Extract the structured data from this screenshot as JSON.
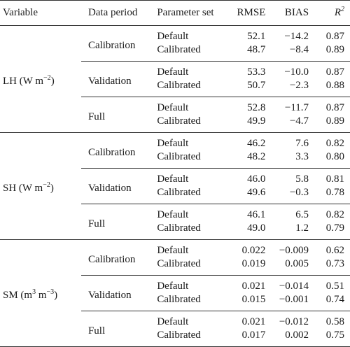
{
  "header": {
    "variable": "Variable",
    "data_period": "Data period",
    "parameter_set": "Parameter set",
    "rmse": "RMSE",
    "bias": "BIAS",
    "r2_base": "R",
    "r2_sup": "2"
  },
  "groups": [
    {
      "var_pre": "LH (W m",
      "var_sup": "−2",
      "var_post": ")",
      "periods": [
        {
          "name": "Calibration",
          "rows": [
            {
              "set": "Default",
              "rmse": "52.1",
              "bias": "−14.2",
              "r2": "0.87"
            },
            {
              "set": "Calibrated",
              "rmse": "48.7",
              "bias": "−8.4",
              "r2": "0.89"
            }
          ]
        },
        {
          "name": "Validation",
          "rows": [
            {
              "set": "Default",
              "rmse": "53.3",
              "bias": "−10.0",
              "r2": "0.87"
            },
            {
              "set": "Calibrated",
              "rmse": "50.7",
              "bias": "−2.3",
              "r2": "0.88"
            }
          ]
        },
        {
          "name": "Full",
          "rows": [
            {
              "set": "Default",
              "rmse": "52.8",
              "bias": "−11.7",
              "r2": "0.87"
            },
            {
              "set": "Calibrated",
              "rmse": "49.9",
              "bias": "−4.7",
              "r2": "0.89"
            }
          ]
        }
      ]
    },
    {
      "var_pre": "SH (W m",
      "var_sup": "−2",
      "var_post": ")",
      "periods": [
        {
          "name": "Calibration",
          "rows": [
            {
              "set": "Default",
              "rmse": "46.2",
              "bias": "7.6",
              "r2": "0.82"
            },
            {
              "set": "Calibrated",
              "rmse": "48.2",
              "bias": "3.3",
              "r2": "0.80"
            }
          ]
        },
        {
          "name": "Validation",
          "rows": [
            {
              "set": "Default",
              "rmse": "46.0",
              "bias": "5.8",
              "r2": "0.81"
            },
            {
              "set": "Calibrated",
              "rmse": "49.6",
              "bias": "−0.3",
              "r2": "0.78"
            }
          ]
        },
        {
          "name": "Full",
          "rows": [
            {
              "set": "Default",
              "rmse": "46.1",
              "bias": "6.5",
              "r2": "0.82"
            },
            {
              "set": "Calibrated",
              "rmse": "49.0",
              "bias": "1.2",
              "r2": "0.79"
            }
          ]
        }
      ]
    },
    {
      "var_pre": "SM (m",
      "var_sup": "3",
      "var_mid": " m",
      "var_sup2": "−3",
      "var_post": ")",
      "periods": [
        {
          "name": "Calibration",
          "rows": [
            {
              "set": "Default",
              "rmse": "0.022",
              "bias": "−0.009",
              "r2": "0.62"
            },
            {
              "set": "Calibrated",
              "rmse": "0.019",
              "bias": "0.005",
              "r2": "0.73"
            }
          ]
        },
        {
          "name": "Validation",
          "rows": [
            {
              "set": "Default",
              "rmse": "0.021",
              "bias": "−0.014",
              "r2": "0.51"
            },
            {
              "set": "Calibrated",
              "rmse": "0.015",
              "bias": "−0.001",
              "r2": "0.74"
            }
          ]
        },
        {
          "name": "Full",
          "rows": [
            {
              "set": "Default",
              "rmse": "0.021",
              "bias": "−0.012",
              "r2": "0.58"
            },
            {
              "set": "Calibrated",
              "rmse": "0.017",
              "bias": "0.002",
              "r2": "0.75"
            }
          ]
        }
      ]
    }
  ]
}
